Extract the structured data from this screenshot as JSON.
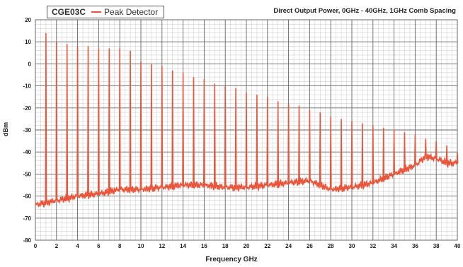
{
  "chart_data": {
    "type": "line",
    "title": "Direct Output Power, 0GHz - 40GHz, 1GHz Comb Spacing",
    "xlabel": "Frequency GHz",
    "ylabel": "dBm",
    "xlim": [
      0,
      40
    ],
    "ylim": [
      -80,
      20
    ],
    "x_ticks": [
      "0",
      "2",
      "4",
      "6",
      "8",
      "10",
      "12",
      "14",
      "16",
      "18",
      "20",
      "22",
      "24",
      "26",
      "28",
      "30",
      "32",
      "34",
      "36",
      "38",
      "40"
    ],
    "y_ticks": [
      "20",
      "10",
      "0",
      "-10",
      "-20",
      "-30",
      "-40",
      "-50",
      "-60",
      "-70",
      "-80"
    ],
    "grid": true,
    "legend": {
      "title": "CGE03C",
      "placement": "top-left"
    },
    "series": [
      {
        "name": "Peak Detector",
        "color": "#e8553a",
        "peaks_x": [
          1,
          2,
          3,
          4,
          5,
          6,
          7,
          8,
          9,
          10,
          11,
          12,
          13,
          14,
          15,
          16,
          17,
          18,
          19,
          20,
          21,
          22,
          23,
          24,
          25,
          26,
          27,
          28,
          29,
          30,
          31,
          32,
          33,
          34,
          35,
          36,
          37,
          38,
          39,
          40
        ],
        "peaks_y": [
          14,
          10,
          9,
          8,
          8,
          7,
          7,
          7,
          6,
          1,
          0,
          -1,
          -3,
          -4,
          -6,
          -7,
          -9,
          -10,
          -11,
          -13,
          -14,
          -15,
          -17,
          -18,
          -19,
          -21,
          -22,
          -24,
          -25,
          -26,
          -27,
          -28,
          -29,
          -30,
          -31,
          -32,
          -34,
          -35,
          -37,
          -40
        ],
        "floor_x": [
          0,
          2,
          4,
          6,
          8,
          10,
          12,
          14,
          16,
          18,
          20,
          22,
          24,
          26,
          28,
          30,
          32,
          34,
          36,
          37,
          38,
          39,
          40
        ],
        "floor_y": [
          -64,
          -62,
          -60,
          -59,
          -57,
          -57,
          -56,
          -55,
          -55,
          -56,
          -56,
          -55,
          -54,
          -53,
          -57,
          -56,
          -54,
          -50,
          -46,
          -42,
          -43,
          -45,
          -45
        ]
      }
    ]
  }
}
